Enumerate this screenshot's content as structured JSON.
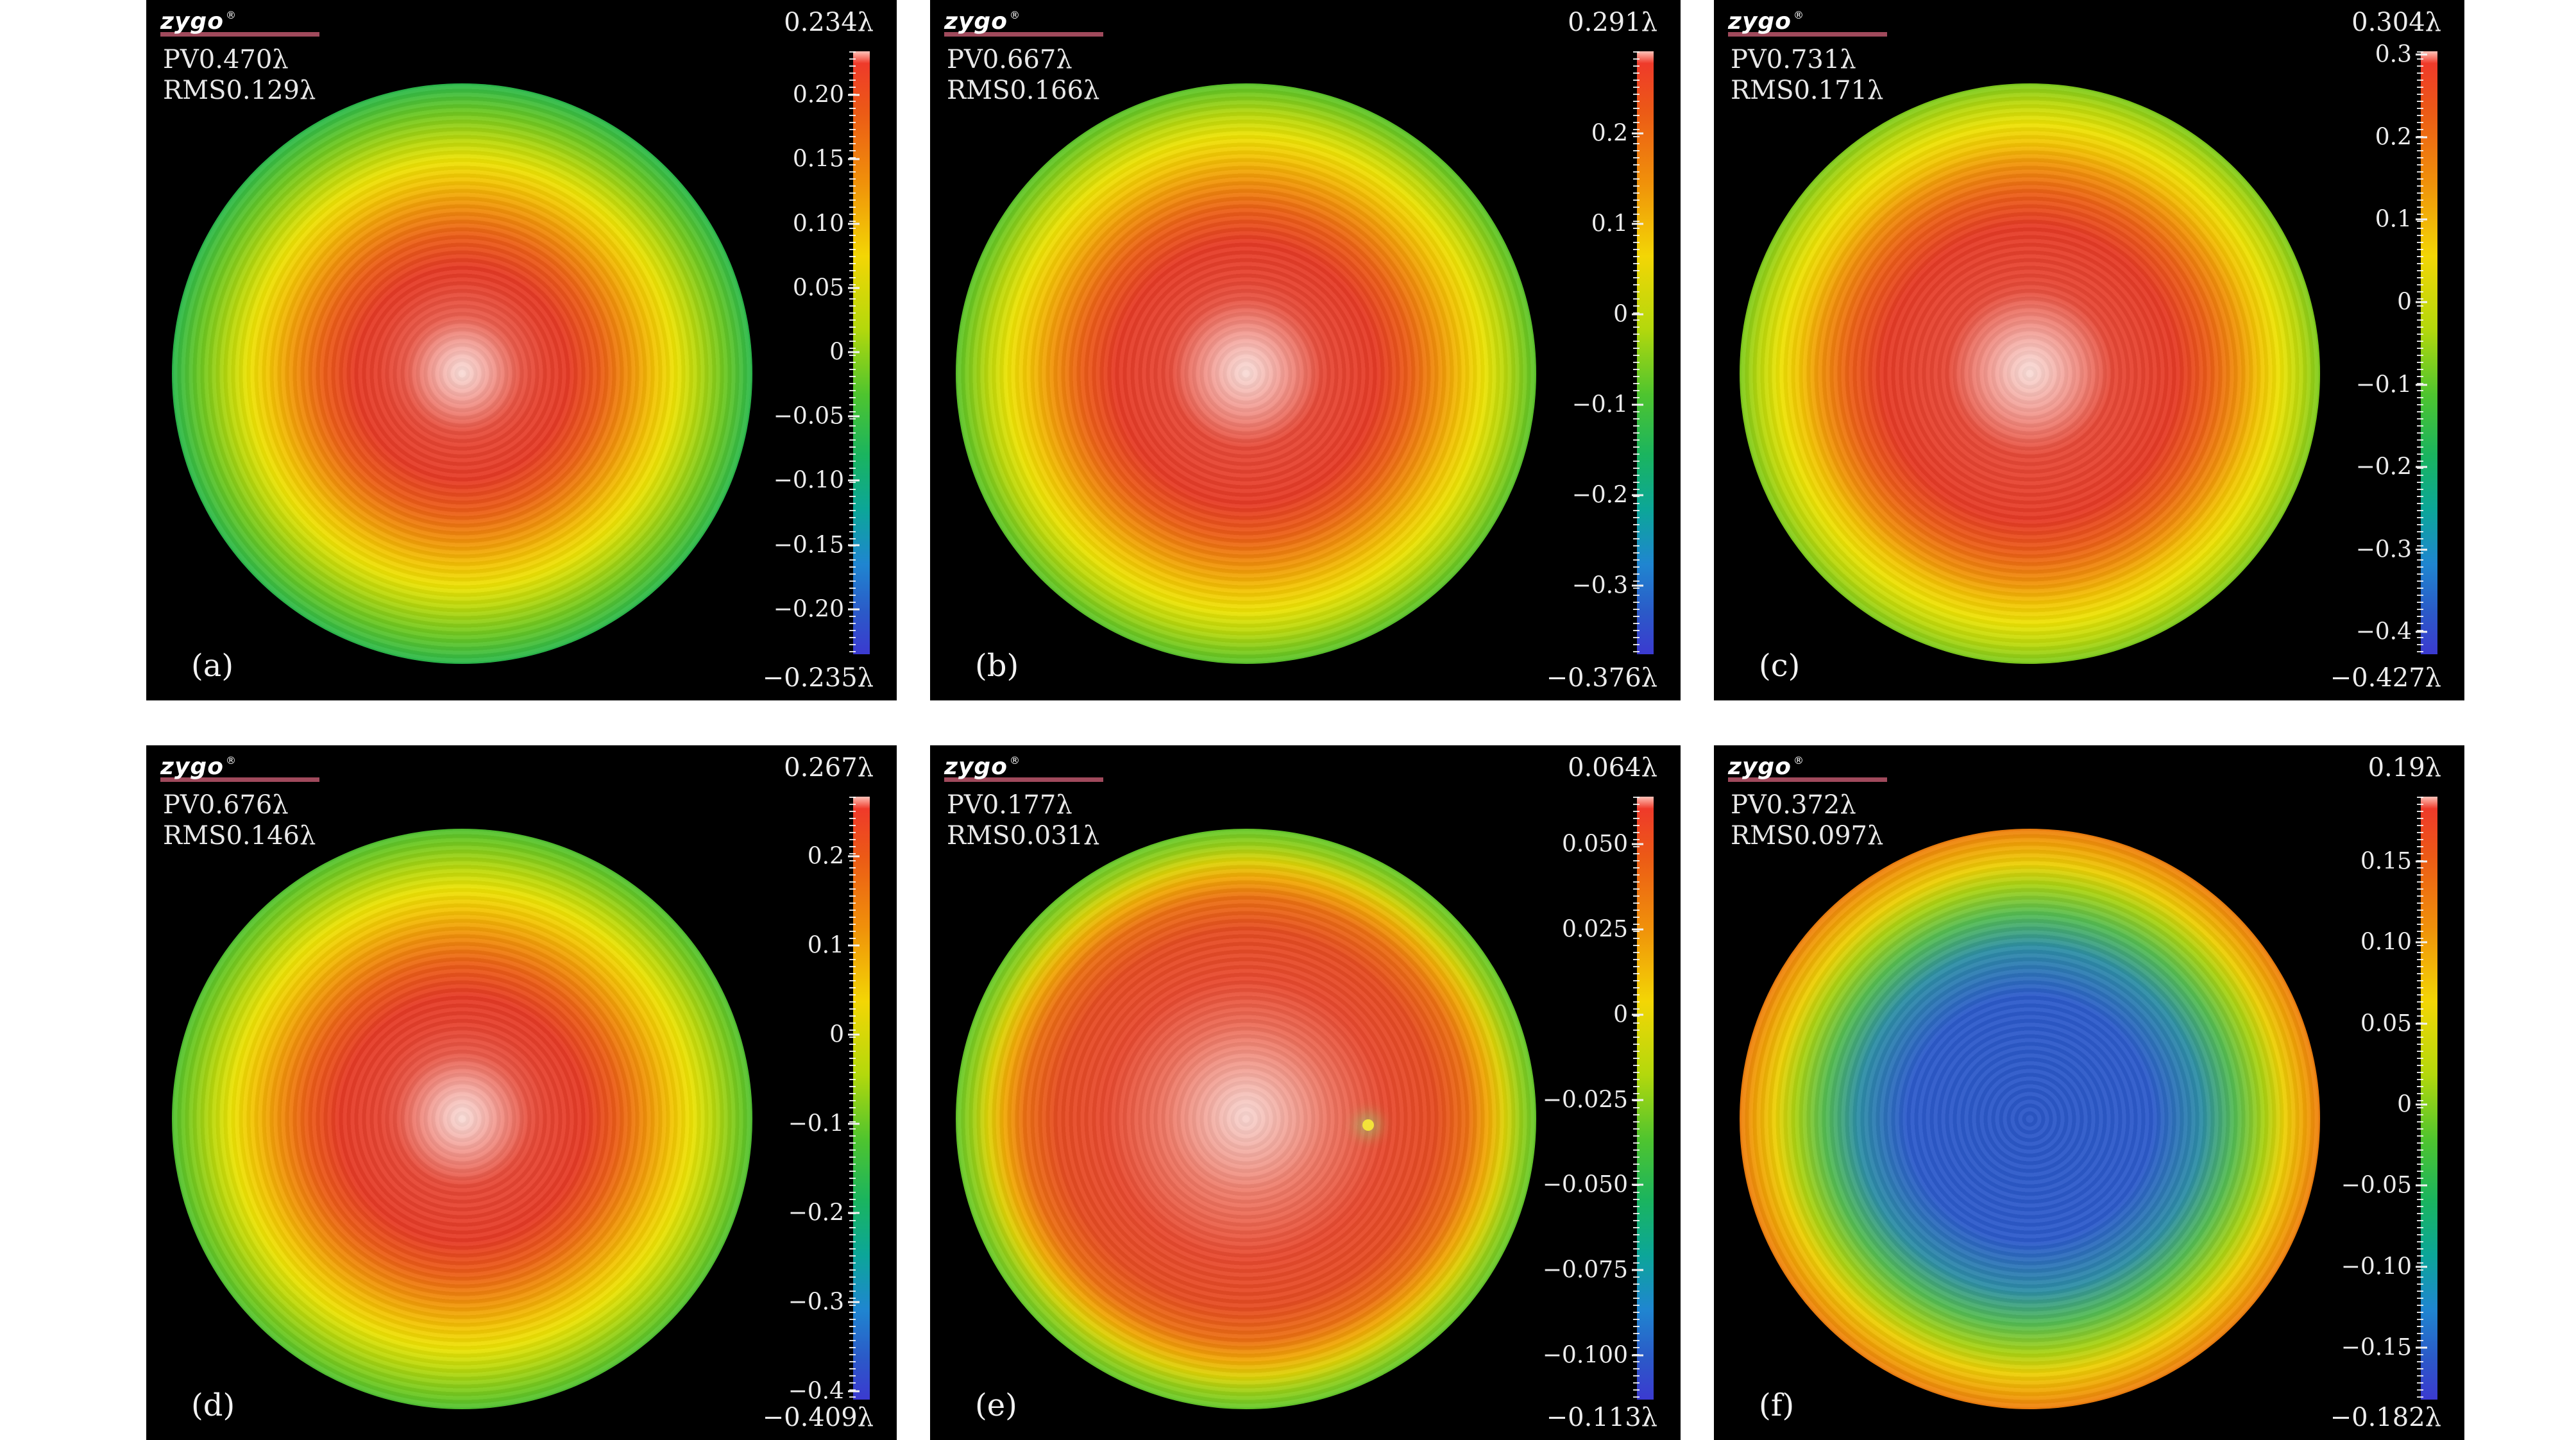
{
  "figure": {
    "brand": "zygo",
    "brand_mark": "®",
    "background": "#ffffff",
    "panel_background": "#000000",
    "text_color": "#e8e8e8",
    "logo_underline_color": "#a04a5c",
    "colorbar_gradient": [
      [
        "0%",
        "#ffc2b8"
      ],
      [
        "2%",
        "#ef3a2a"
      ],
      [
        "10%",
        "#ec5a16"
      ],
      [
        "22%",
        "#f0920a"
      ],
      [
        "34%",
        "#f3d605"
      ],
      [
        "46%",
        "#b4d80c"
      ],
      [
        "57%",
        "#4ec42f"
      ],
      [
        "67%",
        "#1ab45f"
      ],
      [
        "76%",
        "#0ca698"
      ],
      [
        "85%",
        "#1f86d0"
      ],
      [
        "93%",
        "#2b5ac8"
      ],
      [
        "100%",
        "#3b3ad0"
      ]
    ]
  },
  "chart_data": [
    {
      "type": "heatmap",
      "panel_label": "(a)",
      "pv_label": "PV0.470λ",
      "rms_label": "RMS0.129λ",
      "pv_lambda": 0.47,
      "rms_lambda": 0.129,
      "colorbar_max_label": "0.234λ",
      "colorbar_min_label": "−0.235λ",
      "colorbar_max": 0.234,
      "colorbar_min": -0.235,
      "ticks": [
        {
          "label": "0.20",
          "value": 0.2
        },
        {
          "label": "0.15",
          "value": 0.15
        },
        {
          "label": "0.10",
          "value": 0.1
        },
        {
          "label": "0.05",
          "value": 0.05
        },
        {
          "label": "0",
          "value": 0
        },
        {
          "label": "−0.05",
          "value": -0.05
        },
        {
          "label": "−0.10",
          "value": -0.1
        },
        {
          "label": "−0.15",
          "value": -0.15
        },
        {
          "label": "−0.20",
          "value": -0.2
        }
      ],
      "radial_profile": {
        "radius_fraction": [
          0,
          0.15,
          0.3,
          0.45,
          0.6,
          0.75,
          0.9,
          1.0
        ],
        "value_lambda": [
          0.22,
          0.2,
          0.16,
          0.1,
          0.02,
          -0.07,
          -0.16,
          -0.22
        ]
      },
      "disc_gradient": [
        [
          "0%",
          "#f6cdc6"
        ],
        [
          "6%",
          "#f2948a"
        ],
        [
          "14%",
          "#e74a38"
        ],
        [
          "26%",
          "#e63b26"
        ],
        [
          "34%",
          "#ec5f17"
        ],
        [
          "41%",
          "#f1930a"
        ],
        [
          "47%",
          "#f3c404"
        ],
        [
          "52%",
          "#ede305"
        ],
        [
          "57%",
          "#bcd90c"
        ],
        [
          "64%",
          "#6cc822"
        ],
        [
          "71%",
          "#28b94e"
        ],
        [
          "78%",
          "#0fab84"
        ],
        [
          "84%",
          "#13a0b6"
        ],
        [
          "90%",
          "#2b77d2"
        ],
        [
          "96%",
          "#2b55c4"
        ],
        [
          "100%",
          "#2747ae"
        ]
      ]
    },
    {
      "type": "heatmap",
      "panel_label": "(b)",
      "pv_label": "PV0.667λ",
      "rms_label": "RMS0.166λ",
      "pv_lambda": 0.667,
      "rms_lambda": 0.166,
      "colorbar_max_label": "0.291λ",
      "colorbar_min_label": "−0.376λ",
      "colorbar_max": 0.291,
      "colorbar_min": -0.376,
      "ticks": [
        {
          "label": "0.2",
          "value": 0.2
        },
        {
          "label": "0.1",
          "value": 0.1
        },
        {
          "label": "0",
          "value": 0
        },
        {
          "label": "−0.1",
          "value": -0.1
        },
        {
          "label": "−0.2",
          "value": -0.2
        },
        {
          "label": "−0.3",
          "value": -0.3
        }
      ],
      "radial_profile": {
        "radius_fraction": [
          0,
          0.15,
          0.3,
          0.45,
          0.6,
          0.75,
          0.9,
          1.0
        ],
        "value_lambda": [
          0.27,
          0.25,
          0.2,
          0.12,
          0.02,
          -0.1,
          -0.24,
          -0.34
        ]
      },
      "disc_gradient": [
        [
          "0%",
          "#f6cdc6"
        ],
        [
          "8%",
          "#f2948a"
        ],
        [
          "18%",
          "#e74a38"
        ],
        [
          "32%",
          "#e63b26"
        ],
        [
          "40%",
          "#ec5f17"
        ],
        [
          "47%",
          "#f1930a"
        ],
        [
          "53%",
          "#f3c404"
        ],
        [
          "58%",
          "#ede305"
        ],
        [
          "63%",
          "#bcd90c"
        ],
        [
          "69%",
          "#6cc822"
        ],
        [
          "76%",
          "#28b94e"
        ],
        [
          "82%",
          "#0fab84"
        ],
        [
          "88%",
          "#17a0c0"
        ],
        [
          "93%",
          "#2b77d2"
        ],
        [
          "100%",
          "#2a4fc0"
        ]
      ]
    },
    {
      "type": "heatmap",
      "panel_label": "(c)",
      "pv_label": "PV0.731λ",
      "rms_label": "RMS0.171λ",
      "pv_lambda": 0.731,
      "rms_lambda": 0.171,
      "colorbar_max_label": "0.304λ",
      "colorbar_min_label": "−0.427λ",
      "colorbar_max": 0.304,
      "colorbar_min": -0.427,
      "ticks": [
        {
          "label": "0.3",
          "value": 0.3
        },
        {
          "label": "0.2",
          "value": 0.2
        },
        {
          "label": "0.1",
          "value": 0.1
        },
        {
          "label": "0",
          "value": 0
        },
        {
          "label": "−0.1",
          "value": -0.1
        },
        {
          "label": "−0.2",
          "value": -0.2
        },
        {
          "label": "−0.3",
          "value": -0.3
        },
        {
          "label": "−0.4",
          "value": -0.4
        }
      ],
      "radial_profile": {
        "radius_fraction": [
          0,
          0.15,
          0.3,
          0.45,
          0.6,
          0.75,
          0.9,
          1.0
        ],
        "value_lambda": [
          0.29,
          0.27,
          0.22,
          0.13,
          0.02,
          -0.12,
          -0.27,
          -0.4
        ]
      },
      "disc_gradient": [
        [
          "0%",
          "#f6cdc6"
        ],
        [
          "9%",
          "#f2948a"
        ],
        [
          "20%",
          "#e74a38"
        ],
        [
          "36%",
          "#e63b26"
        ],
        [
          "44%",
          "#ec5f17"
        ],
        [
          "51%",
          "#f1930a"
        ],
        [
          "56%",
          "#f3c404"
        ],
        [
          "61%",
          "#ede305"
        ],
        [
          "66%",
          "#bcd90c"
        ],
        [
          "72%",
          "#6cc822"
        ],
        [
          "78%",
          "#28b94e"
        ],
        [
          "84%",
          "#0fab84"
        ],
        [
          "89%",
          "#17a0c0"
        ],
        [
          "94%",
          "#2b77d2"
        ],
        [
          "100%",
          "#2a4fc0"
        ]
      ]
    },
    {
      "type": "heatmap",
      "panel_label": "(d)",
      "pv_label": "PV0.676λ",
      "rms_label": "RMS0.146λ",
      "pv_lambda": 0.676,
      "rms_lambda": 0.146,
      "colorbar_max_label": "0.267λ",
      "colorbar_min_label": "−0.409λ",
      "colorbar_max": 0.267,
      "colorbar_min": -0.409,
      "ticks": [
        {
          "label": "0.2",
          "value": 0.2
        },
        {
          "label": "0.1",
          "value": 0.1
        },
        {
          "label": "0",
          "value": 0
        },
        {
          "label": "−0.1",
          "value": -0.1
        },
        {
          "label": "−0.2",
          "value": -0.2
        },
        {
          "label": "−0.3",
          "value": -0.3
        },
        {
          "label": "−0.4",
          "value": -0.4
        }
      ],
      "radial_profile": {
        "radius_fraction": [
          0,
          0.15,
          0.3,
          0.45,
          0.6,
          0.75,
          0.9,
          1.0
        ],
        "value_lambda": [
          0.25,
          0.23,
          0.18,
          0.1,
          0.0,
          -0.13,
          -0.27,
          -0.38
        ]
      },
      "disc_gradient": [
        [
          "0%",
          "#f6cdc6"
        ],
        [
          "7%",
          "#f2948a"
        ],
        [
          "16%",
          "#e74a38"
        ],
        [
          "30%",
          "#e63b26"
        ],
        [
          "38%",
          "#ec5f17"
        ],
        [
          "45%",
          "#f1930a"
        ],
        [
          "51%",
          "#f3c404"
        ],
        [
          "56%",
          "#ede305"
        ],
        [
          "61%",
          "#bcd90c"
        ],
        [
          "68%",
          "#6cc822"
        ],
        [
          "75%",
          "#28b94e"
        ],
        [
          "81%",
          "#0fab84"
        ],
        [
          "87%",
          "#17a0c0"
        ],
        [
          "93%",
          "#2b77d2"
        ],
        [
          "100%",
          "#2a4fc0"
        ]
      ]
    },
    {
      "type": "heatmap",
      "panel_label": "(e)",
      "pv_label": "PV0.177λ",
      "rms_label": "RMS0.031λ",
      "pv_lambda": 0.177,
      "rms_lambda": 0.031,
      "colorbar_max_label": "0.064λ",
      "colorbar_min_label": "−0.113λ",
      "colorbar_max": 0.064,
      "colorbar_min": -0.113,
      "ticks": [
        {
          "label": "0.050",
          "value": 0.05
        },
        {
          "label": "0.025",
          "value": 0.025
        },
        {
          "label": "0",
          "value": 0
        },
        {
          "label": "−0.025",
          "value": -0.025
        },
        {
          "label": "−0.050",
          "value": -0.05
        },
        {
          "label": "−0.075",
          "value": -0.075
        },
        {
          "label": "−0.100",
          "value": -0.1
        }
      ],
      "radial_profile": {
        "radius_fraction": [
          0,
          0.15,
          0.3,
          0.45,
          0.6,
          0.75,
          0.9,
          1.0
        ],
        "value_lambda": [
          0.055,
          0.05,
          0.042,
          0.03,
          0.012,
          -0.015,
          -0.06,
          -0.1
        ]
      },
      "disc_gradient": [
        [
          "0%",
          "#f4c1ba"
        ],
        [
          "18%",
          "#ef7e6c"
        ],
        [
          "34%",
          "#e84a30"
        ],
        [
          "46%",
          "#e64c22"
        ],
        [
          "54%",
          "#ec7013"
        ],
        [
          "59%",
          "#f1a906"
        ],
        [
          "63%",
          "#ddd307"
        ],
        [
          "67%",
          "#96d018"
        ],
        [
          "73%",
          "#46c437"
        ],
        [
          "80%",
          "#23b954"
        ],
        [
          "87%",
          "#2fb35f"
        ],
        [
          "92%",
          "#2aab74"
        ],
        [
          "96%",
          "#2596b4"
        ],
        [
          "100%",
          "#2e5cc2"
        ]
      ]
    },
    {
      "type": "heatmap",
      "panel_label": "(f)",
      "pv_label": "PV0.372λ",
      "rms_label": "RMS0.097λ",
      "pv_lambda": 0.372,
      "rms_lambda": 0.097,
      "colorbar_max_label": "0.19λ",
      "colorbar_min_label": "−0.182λ",
      "colorbar_max": 0.19,
      "colorbar_min": -0.182,
      "ticks": [
        {
          "label": "0.15",
          "value": 0.15
        },
        {
          "label": "0.10",
          "value": 0.1
        },
        {
          "label": "0.05",
          "value": 0.05
        },
        {
          "label": "0",
          "value": 0
        },
        {
          "label": "−0.05",
          "value": -0.05
        },
        {
          "label": "−0.10",
          "value": -0.1
        },
        {
          "label": "−0.15",
          "value": -0.15
        }
      ],
      "radial_profile": {
        "radius_fraction": [
          0,
          0.15,
          0.3,
          0.45,
          0.6,
          0.75,
          0.9,
          1.0
        ],
        "value_lambda": [
          -0.16,
          -0.15,
          -0.13,
          -0.08,
          0.0,
          0.09,
          0.15,
          0.17
        ]
      },
      "disc_gradient": [
        [
          "0%",
          "#2c58c8"
        ],
        [
          "30%",
          "#2d5bcb"
        ],
        [
          "42%",
          "#2e8fa6"
        ],
        [
          "50%",
          "#55bd53"
        ],
        [
          "57%",
          "#a8d314"
        ],
        [
          "62%",
          "#ecd106"
        ],
        [
          "67%",
          "#f1a306"
        ],
        [
          "72%",
          "#ee7212"
        ],
        [
          "78%",
          "#e8492a"
        ],
        [
          "86%",
          "#e6382a"
        ],
        [
          "100%",
          "#e23b2e"
        ]
      ]
    }
  ]
}
